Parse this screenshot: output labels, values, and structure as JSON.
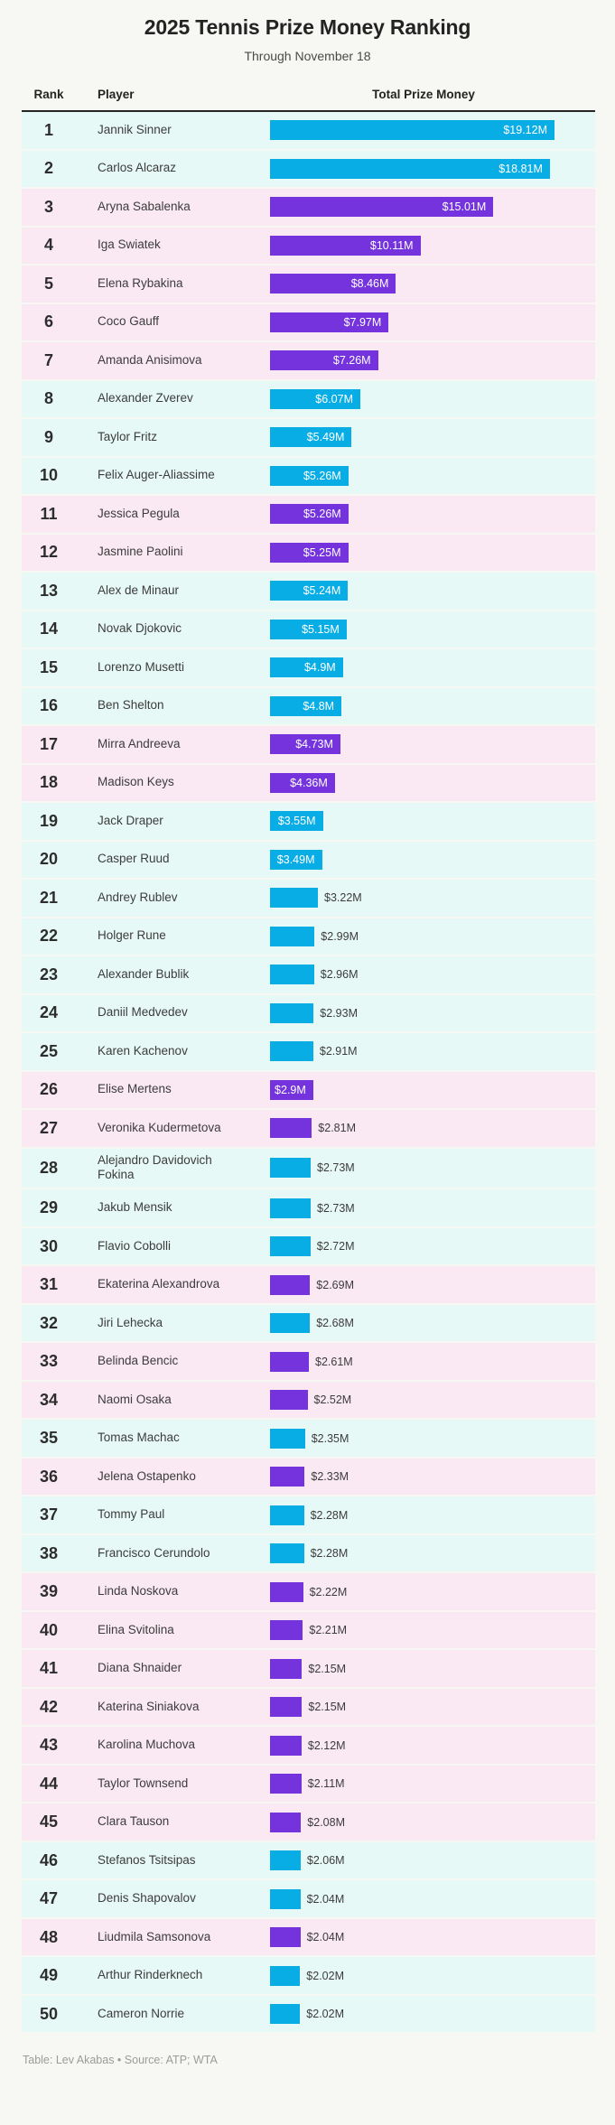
{
  "header": {
    "title": "2025 Tennis Prize Money Ranking",
    "subtitle": "Through November 18"
  },
  "table_columns": {
    "rank": "Rank",
    "player": "Player",
    "value": "Total Prize Money"
  },
  "footer": {
    "credit": "Table: Lev Akabas • Source: ATP; WTA"
  },
  "colors": {
    "cyan_bar": "#09ade6",
    "purple_bar": "#7433dc",
    "cyan_row_bg": "#e7f9f6",
    "purple_row_bg": "#fae9f3",
    "page_bg": "#f7f7f4",
    "inside_label_text": "#ffffff",
    "outside_label_text": "#3c3c3c"
  },
  "chart_data": {
    "type": "bar",
    "orientation": "horizontal",
    "title": "2025 Tennis Prize Money Ranking",
    "subtitle": "Through November 18",
    "value_unit": "USD millions",
    "value_axis": {
      "min": 0,
      "max": 19.12
    },
    "rows": [
      {
        "rank": 1,
        "player": "Jannik Sinner",
        "value": 19.12,
        "label": "$19.12M",
        "color": "cyan",
        "label_inside": true
      },
      {
        "rank": 2,
        "player": "Carlos Alcaraz",
        "value": 18.81,
        "label": "$18.81M",
        "color": "cyan",
        "label_inside": true
      },
      {
        "rank": 3,
        "player": "Aryna Sabalenka",
        "value": 15.01,
        "label": "$15.01M",
        "color": "purple",
        "label_inside": true
      },
      {
        "rank": 4,
        "player": "Iga Swiatek",
        "value": 10.11,
        "label": "$10.11M",
        "color": "purple",
        "label_inside": true
      },
      {
        "rank": 5,
        "player": "Elena Rybakina",
        "value": 8.46,
        "label": "$8.46M",
        "color": "purple",
        "label_inside": true
      },
      {
        "rank": 6,
        "player": "Coco Gauff",
        "value": 7.97,
        "label": "$7.97M",
        "color": "purple",
        "label_inside": true
      },
      {
        "rank": 7,
        "player": "Amanda Anisimova",
        "value": 7.26,
        "label": "$7.26M",
        "color": "purple",
        "label_inside": true
      },
      {
        "rank": 8,
        "player": "Alexander Zverev",
        "value": 6.07,
        "label": "$6.07M",
        "color": "cyan",
        "label_inside": true
      },
      {
        "rank": 9,
        "player": "Taylor Fritz",
        "value": 5.49,
        "label": "$5.49M",
        "color": "cyan",
        "label_inside": true
      },
      {
        "rank": 10,
        "player": "Felix Auger-Aliassime",
        "value": 5.26,
        "label": "$5.26M",
        "color": "cyan",
        "label_inside": true
      },
      {
        "rank": 11,
        "player": "Jessica Pegula",
        "value": 5.26,
        "label": "$5.26M",
        "color": "purple",
        "label_inside": true
      },
      {
        "rank": 12,
        "player": "Jasmine Paolini",
        "value": 5.25,
        "label": "$5.25M",
        "color": "purple",
        "label_inside": true
      },
      {
        "rank": 13,
        "player": "Alex de Minaur",
        "value": 5.24,
        "label": "$5.24M",
        "color": "cyan",
        "label_inside": true
      },
      {
        "rank": 14,
        "player": "Novak Djokovic",
        "value": 5.15,
        "label": "$5.15M",
        "color": "cyan",
        "label_inside": true
      },
      {
        "rank": 15,
        "player": "Lorenzo Musetti",
        "value": 4.9,
        "label": "$4.9M",
        "color": "cyan",
        "label_inside": true
      },
      {
        "rank": 16,
        "player": "Ben Shelton",
        "value": 4.8,
        "label": "$4.8M",
        "color": "cyan",
        "label_inside": true
      },
      {
        "rank": 17,
        "player": "Mirra Andreeva",
        "value": 4.73,
        "label": "$4.73M",
        "color": "purple",
        "label_inside": true
      },
      {
        "rank": 18,
        "player": "Madison Keys",
        "value": 4.36,
        "label": "$4.36M",
        "color": "purple",
        "label_inside": true
      },
      {
        "rank": 19,
        "player": "Jack Draper",
        "value": 3.55,
        "label": "$3.55M",
        "color": "cyan",
        "label_inside": true
      },
      {
        "rank": 20,
        "player": "Casper Ruud",
        "value": 3.49,
        "label": "$3.49M",
        "color": "cyan",
        "label_inside": true
      },
      {
        "rank": 21,
        "player": "Andrey Rublev",
        "value": 3.22,
        "label": "$3.22M",
        "color": "cyan",
        "label_inside": false
      },
      {
        "rank": 22,
        "player": "Holger Rune",
        "value": 2.99,
        "label": "$2.99M",
        "color": "cyan",
        "label_inside": false
      },
      {
        "rank": 23,
        "player": "Alexander Bublik",
        "value": 2.96,
        "label": "$2.96M",
        "color": "cyan",
        "label_inside": false
      },
      {
        "rank": 24,
        "player": "Daniil Medvedev",
        "value": 2.93,
        "label": "$2.93M",
        "color": "cyan",
        "label_inside": false
      },
      {
        "rank": 25,
        "player": "Karen Kachenov",
        "value": 2.91,
        "label": "$2.91M",
        "color": "cyan",
        "label_inside": false
      },
      {
        "rank": 26,
        "player": "Elise Mertens",
        "value": 2.9,
        "label": "$2.9M",
        "color": "purple",
        "label_inside": true
      },
      {
        "rank": 27,
        "player": "Veronika Kudermetova",
        "value": 2.81,
        "label": "$2.81M",
        "color": "purple",
        "label_inside": false
      },
      {
        "rank": 28,
        "player": "Alejandro Davidovich Fokina",
        "value": 2.73,
        "label": "$2.73M",
        "color": "cyan",
        "label_inside": false
      },
      {
        "rank": 29,
        "player": "Jakub Mensik",
        "value": 2.73,
        "label": "$2.73M",
        "color": "cyan",
        "label_inside": false
      },
      {
        "rank": 30,
        "player": "Flavio Cobolli",
        "value": 2.72,
        "label": "$2.72M",
        "color": "cyan",
        "label_inside": false
      },
      {
        "rank": 31,
        "player": "Ekaterina Alexandrova",
        "value": 2.69,
        "label": "$2.69M",
        "color": "purple",
        "label_inside": false
      },
      {
        "rank": 32,
        "player": "Jiri Lehecka",
        "value": 2.68,
        "label": "$2.68M",
        "color": "cyan",
        "label_inside": false
      },
      {
        "rank": 33,
        "player": "Belinda Bencic",
        "value": 2.61,
        "label": "$2.61M",
        "color": "purple",
        "label_inside": false
      },
      {
        "rank": 34,
        "player": "Naomi Osaka",
        "value": 2.52,
        "label": "$2.52M",
        "color": "purple",
        "label_inside": false
      },
      {
        "rank": 35,
        "player": "Tomas Machac",
        "value": 2.35,
        "label": "$2.35M",
        "color": "cyan",
        "label_inside": false
      },
      {
        "rank": 36,
        "player": "Jelena Ostapenko",
        "value": 2.33,
        "label": "$2.33M",
        "color": "purple",
        "label_inside": false
      },
      {
        "rank": 37,
        "player": "Tommy Paul",
        "value": 2.28,
        "label": "$2.28M",
        "color": "cyan",
        "label_inside": false
      },
      {
        "rank": 38,
        "player": "Francisco Cerundolo",
        "value": 2.28,
        "label": "$2.28M",
        "color": "cyan",
        "label_inside": false
      },
      {
        "rank": 39,
        "player": "Linda Noskova",
        "value": 2.22,
        "label": "$2.22M",
        "color": "purple",
        "label_inside": false
      },
      {
        "rank": 40,
        "player": "Elina Svitolina",
        "value": 2.21,
        "label": "$2.21M",
        "color": "purple",
        "label_inside": false
      },
      {
        "rank": 41,
        "player": "Diana Shnaider",
        "value": 2.15,
        "label": "$2.15M",
        "color": "purple",
        "label_inside": false
      },
      {
        "rank": 42,
        "player": "Katerina Siniakova",
        "value": 2.15,
        "label": "$2.15M",
        "color": "purple",
        "label_inside": false
      },
      {
        "rank": 43,
        "player": "Karolina Muchova",
        "value": 2.12,
        "label": "$2.12M",
        "color": "purple",
        "label_inside": false
      },
      {
        "rank": 44,
        "player": "Taylor Townsend",
        "value": 2.11,
        "label": "$2.11M",
        "color": "purple",
        "label_inside": false
      },
      {
        "rank": 45,
        "player": "Clara Tauson",
        "value": 2.08,
        "label": "$2.08M",
        "color": "purple",
        "label_inside": false
      },
      {
        "rank": 46,
        "player": "Stefanos Tsitsipas",
        "value": 2.06,
        "label": "$2.06M",
        "color": "cyan",
        "label_inside": false
      },
      {
        "rank": 47,
        "player": "Denis Shapovalov",
        "value": 2.04,
        "label": "$2.04M",
        "color": "cyan",
        "label_inside": false
      },
      {
        "rank": 48,
        "player": "Liudmila Samsonova",
        "value": 2.04,
        "label": "$2.04M",
        "color": "purple",
        "label_inside": false
      },
      {
        "rank": 49,
        "player": "Arthur Rinderknech",
        "value": 2.02,
        "label": "$2.02M",
        "color": "cyan",
        "label_inside": false
      },
      {
        "rank": 50,
        "player": "Cameron Norrie",
        "value": 2.02,
        "label": "$2.02M",
        "color": "cyan",
        "label_inside": false
      }
    ]
  }
}
